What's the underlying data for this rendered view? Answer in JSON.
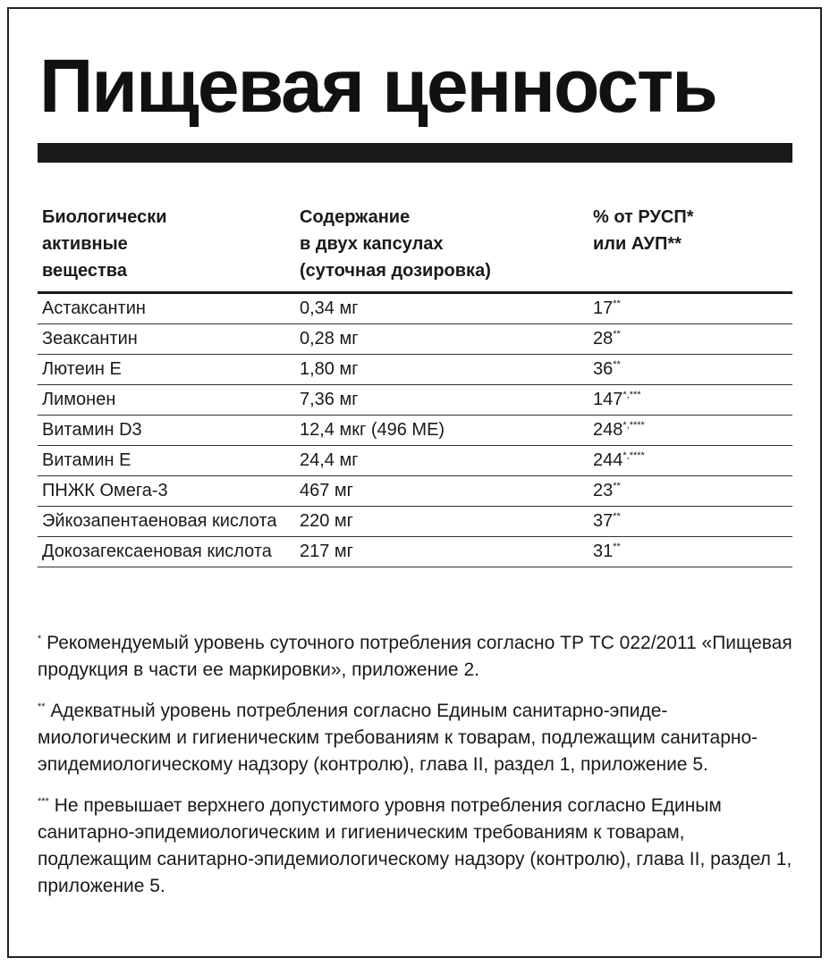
{
  "title": "Пищевая ценность",
  "table": {
    "header": [
      [
        "Биологически",
        "активные",
        "вещества"
      ],
      [
        "Содержание",
        "в двух капсулах",
        "(суточная дозировка)"
      ],
      [
        "% от РУСП*",
        "или АУП**"
      ]
    ],
    "rows": [
      {
        "name": "Астаксантин",
        "amount": "0,34 мг",
        "percent": "17",
        "mark": "**"
      },
      {
        "name": "Зеаксантин",
        "amount": "0,28 мг",
        "percent": "28",
        "mark": "**"
      },
      {
        "name": "Лютеин Е",
        "amount": "1,80 мг",
        "percent": "36",
        "mark": "**"
      },
      {
        "name": "Лимонен",
        "amount": "7,36 мг",
        "percent": "147",
        "mark": "*,***"
      },
      {
        "name": "Витамин D3",
        "amount": "12,4 мкг (496 МЕ)",
        "percent": "248",
        "mark": "*,****"
      },
      {
        "name": "Витамин Е",
        "amount": "24,4 мг",
        "percent": "244",
        "mark": "*,****"
      },
      {
        "name": "ПНЖК Омега-3",
        "amount": "467 мг",
        "percent": "23",
        "mark": "**"
      },
      {
        "name": "Эйкозапентаеновая кислота",
        "amount": "220 мг",
        "percent": "37",
        "mark": "**"
      },
      {
        "name": "Докозагексаеновая кислота",
        "amount": "217 мг",
        "percent": "31",
        "mark": "**"
      }
    ]
  },
  "footnotes": [
    {
      "mark": "*",
      "text": "Рекомендуемый уровень суточного потребления согласно ТР ТС 022/2011 «Пищевая продукция в части ее маркировки», приложение 2."
    },
    {
      "mark": "**",
      "text": "Адекватный уровень потребления согласно Единым санитарно-эпиде­миологическим и гигиеническим требованиям к товарам, подлежащим санитарно-эпидемиологическому надзору (контролю), глава II, раздел 1, приложение 5."
    },
    {
      "mark": "***",
      "text": "Не превышает верхнего допустимого уровня потребления согласно Единым санитарно-эпидемиологическим и гигиеническим требованиям к товарам, подлежащим санитарно-эпидемиологическому надзору (контролю), глава II, раздел 1, приложение 5."
    }
  ]
}
